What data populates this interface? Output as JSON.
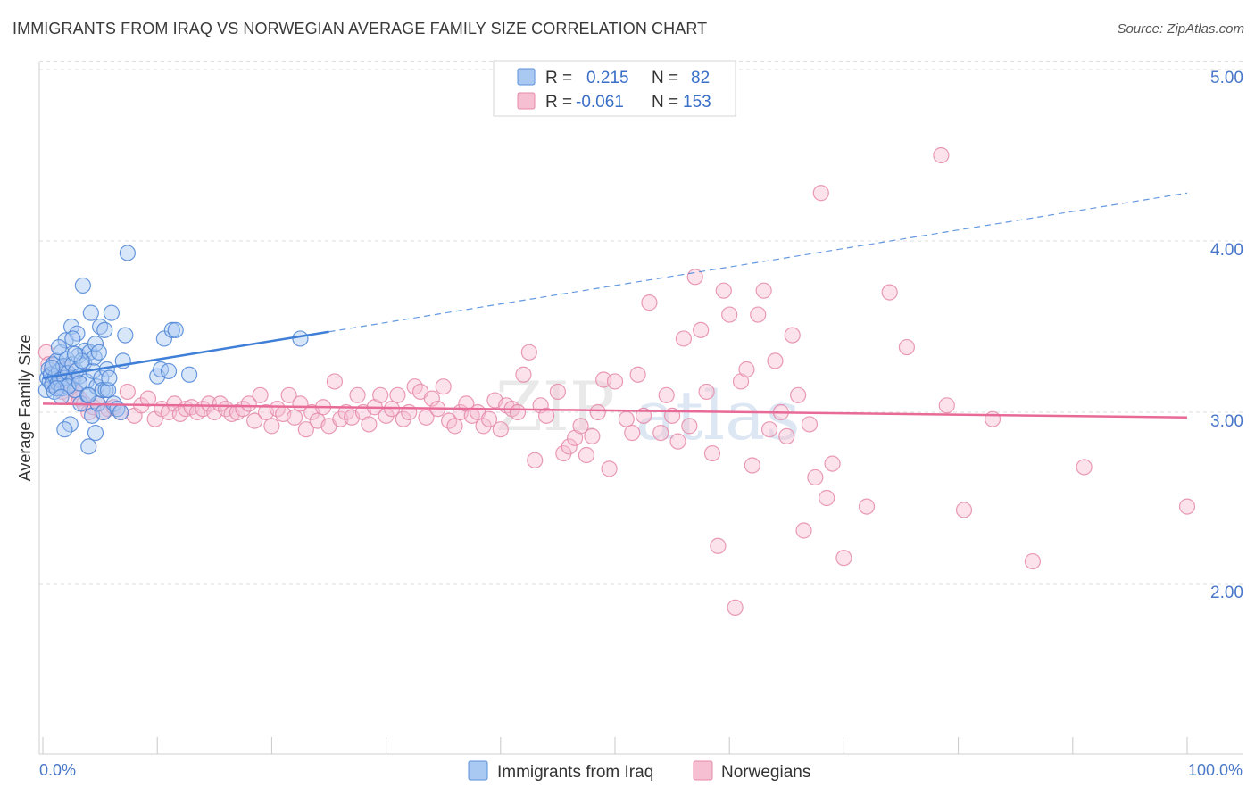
{
  "header": {
    "title": "IMMIGRANTS FROM IRAQ VS NORWEGIAN AVERAGE FAMILY SIZE CORRELATION CHART",
    "source": "Source: ZipAtlas.com"
  },
  "watermark": {
    "zip": "ZIP",
    "atlas": "atlas"
  },
  "colors": {
    "blue": "#3f7fd8",
    "blue_fill": "#a9c8f2",
    "pink": "#e86b97",
    "pink_fill": "#f6bfd2",
    "axis_text": "#4a78c8",
    "grid": "#d9d9d9"
  },
  "legend": {
    "iraq": {
      "r_label": "R =",
      "r_value": "0.215",
      "n_label": "N =",
      "n_value": "82"
    },
    "norway": {
      "r_label": "R =",
      "r_value": "-0.061",
      "n_label": "N =",
      "n_value": "153"
    }
  },
  "chart_data": {
    "type": "scatter",
    "title": "IMMIGRANTS FROM IRAQ VS NORWEGIAN AVERAGE FAMILY SIZE CORRELATION CHART",
    "xlabel": "",
    "ylabel": "Average Family Size",
    "xlim": [
      0,
      100
    ],
    "ylim": [
      1.0,
      5.2
    ],
    "x_tick_labels": [
      "0.0%",
      "100.0%"
    ],
    "y_ticks": [
      2.0,
      3.0,
      4.0,
      5.0
    ],
    "y_tick_labels": [
      "2.00",
      "3.00",
      "4.00",
      "5.00"
    ],
    "grid": true,
    "legend_position": "top-center",
    "series": [
      {
        "name": "Immigrants from Iraq",
        "color": "#3f7fd8",
        "r": 0.215,
        "n": 82,
        "trendline": {
          "x": [
            0,
            25
          ],
          "y": [
            3.2,
            3.47
          ],
          "dashed_extension": {
            "x": [
              25,
              100
            ],
            "y": [
              3.47,
              4.28
            ]
          }
        },
        "points": [
          [
            0.3,
            3.13
          ],
          [
            0.4,
            3.2
          ],
          [
            0.5,
            3.25
          ],
          [
            0.6,
            3.18
          ],
          [
            0.7,
            3.22
          ],
          [
            0.8,
            3.16
          ],
          [
            0.9,
            3.28
          ],
          [
            1.0,
            3.12
          ],
          [
            1.1,
            3.21
          ],
          [
            1.2,
            3.3
          ],
          [
            1.3,
            3.17
          ],
          [
            1.4,
            3.24
          ],
          [
            1.5,
            3.19
          ],
          [
            1.6,
            3.35
          ],
          [
            1.7,
            3.14
          ],
          [
            1.8,
            3.27
          ],
          [
            1.9,
            3.2
          ],
          [
            2.0,
            3.42
          ],
          [
            2.1,
            3.31
          ],
          [
            2.2,
            3.23
          ],
          [
            2.3,
            3.16
          ],
          [
            2.4,
            2.93
          ],
          [
            2.5,
            3.5
          ],
          [
            2.6,
            3.28
          ],
          [
            2.7,
            3.2
          ],
          [
            2.8,
            3.13
          ],
          [
            2.9,
            3.24
          ],
          [
            3.0,
            3.46
          ],
          [
            3.1,
            3.33
          ],
          [
            3.2,
            3.21
          ],
          [
            3.3,
            3.05
          ],
          [
            3.5,
            3.74
          ],
          [
            3.6,
            3.29
          ],
          [
            3.7,
            3.36
          ],
          [
            3.8,
            3.18
          ],
          [
            3.9,
            3.1
          ],
          [
            4.0,
            2.8
          ],
          [
            4.1,
            3.35
          ],
          [
            4.2,
            3.58
          ],
          [
            4.3,
            2.98
          ],
          [
            4.4,
            3.24
          ],
          [
            4.5,
            3.32
          ],
          [
            4.6,
            3.4
          ],
          [
            4.7,
            3.15
          ],
          [
            4.8,
            3.05
          ],
          [
            4.9,
            3.35
          ],
          [
            5.0,
            3.5
          ],
          [
            5.1,
            3.2
          ],
          [
            5.2,
            3.13
          ],
          [
            5.3,
            3.0
          ],
          [
            5.4,
            3.48
          ],
          [
            5.5,
            3.13
          ],
          [
            5.6,
            3.25
          ],
          [
            5.7,
            3.13
          ],
          [
            5.8,
            3.2
          ],
          [
            6.0,
            3.58
          ],
          [
            6.2,
            3.05
          ],
          [
            6.5,
            3.02
          ],
          [
            6.8,
            3.0
          ],
          [
            7.0,
            3.3
          ],
          [
            7.2,
            3.45
          ],
          [
            7.4,
            3.93
          ],
          [
            10.0,
            3.21
          ],
          [
            10.3,
            3.25
          ],
          [
            10.6,
            3.43
          ],
          [
            11.0,
            3.24
          ],
          [
            11.3,
            3.48
          ],
          [
            11.6,
            3.48
          ],
          [
            12.8,
            3.22
          ],
          [
            22.5,
            3.43
          ],
          [
            1.4,
            3.38
          ],
          [
            1.9,
            2.9
          ],
          [
            2.6,
            3.43
          ],
          [
            3.4,
            3.3
          ],
          [
            4.6,
            2.88
          ],
          [
            2.2,
            3.15
          ],
          [
            1.2,
            3.14
          ],
          [
            0.8,
            3.26
          ],
          [
            2.8,
            3.34
          ],
          [
            3.2,
            3.17
          ],
          [
            1.6,
            3.09
          ],
          [
            4.0,
            3.1
          ]
        ]
      },
      {
        "name": "Norwegians",
        "color": "#e86b97",
        "r": -0.061,
        "n": 153,
        "trendline": {
          "x": [
            0,
            100
          ],
          "y": [
            3.05,
            2.97
          ]
        },
        "points": [
          [
            0.3,
            3.35
          ],
          [
            0.5,
            3.28
          ],
          [
            0.7,
            3.22
          ],
          [
            0.9,
            3.18
          ],
          [
            1.1,
            3.15
          ],
          [
            1.4,
            3.2
          ],
          [
            1.7,
            3.12
          ],
          [
            2.0,
            3.25
          ],
          [
            2.3,
            3.1
          ],
          [
            2.6,
            3.17
          ],
          [
            2.9,
            3.12
          ],
          [
            3.2,
            3.08
          ],
          [
            3.6,
            3.05
          ],
          [
            4.0,
            3.0
          ],
          [
            4.4,
            3.03
          ],
          [
            4.8,
            3.05
          ],
          [
            5.2,
            3.0
          ],
          [
            5.7,
            3.02
          ],
          [
            6.2,
            3.03
          ],
          [
            6.8,
            3.0
          ],
          [
            7.4,
            3.12
          ],
          [
            8.0,
            2.98
          ],
          [
            8.6,
            3.04
          ],
          [
            9.2,
            3.08
          ],
          [
            9.8,
            2.96
          ],
          [
            10.4,
            3.02
          ],
          [
            11.0,
            3.0
          ],
          [
            11.5,
            3.05
          ],
          [
            12.0,
            2.99
          ],
          [
            12.5,
            3.02
          ],
          [
            13.0,
            3.03
          ],
          [
            13.5,
            3.0
          ],
          [
            14.0,
            3.02
          ],
          [
            14.5,
            3.05
          ],
          [
            15.0,
            3.0
          ],
          [
            15.5,
            3.05
          ],
          [
            16.0,
            3.02
          ],
          [
            16.5,
            2.99
          ],
          [
            17.0,
            3.0
          ],
          [
            17.5,
            3.02
          ],
          [
            18.0,
            3.05
          ],
          [
            18.5,
            2.95
          ],
          [
            19.0,
            3.1
          ],
          [
            19.5,
            3.0
          ],
          [
            20.0,
            2.92
          ],
          [
            20.5,
            3.02
          ],
          [
            21.0,
            2.99
          ],
          [
            21.5,
            3.1
          ],
          [
            22.0,
            2.97
          ],
          [
            22.5,
            3.05
          ],
          [
            23.0,
            2.9
          ],
          [
            23.5,
            3.0
          ],
          [
            24.0,
            2.95
          ],
          [
            24.5,
            3.03
          ],
          [
            25.0,
            2.92
          ],
          [
            25.5,
            3.18
          ],
          [
            26.0,
            2.96
          ],
          [
            26.5,
            3.0
          ],
          [
            27.0,
            2.97
          ],
          [
            27.5,
            3.1
          ],
          [
            28.0,
            3.0
          ],
          [
            28.5,
            2.93
          ],
          [
            29.0,
            3.03
          ],
          [
            29.5,
            3.1
          ],
          [
            30.0,
            2.98
          ],
          [
            30.5,
            3.02
          ],
          [
            31.0,
            3.1
          ],
          [
            31.5,
            2.96
          ],
          [
            32.0,
            3.0
          ],
          [
            32.5,
            3.15
          ],
          [
            33.0,
            3.12
          ],
          [
            33.5,
            2.97
          ],
          [
            34.0,
            3.08
          ],
          [
            34.5,
            3.02
          ],
          [
            35.0,
            3.15
          ],
          [
            35.5,
            2.95
          ],
          [
            36.0,
            2.92
          ],
          [
            36.5,
            3.0
          ],
          [
            37.0,
            3.05
          ],
          [
            37.5,
            2.98
          ],
          [
            38.0,
            3.0
          ],
          [
            38.5,
            2.92
          ],
          [
            39.0,
            2.96
          ],
          [
            39.5,
            3.07
          ],
          [
            40.0,
            2.9
          ],
          [
            40.5,
            3.04
          ],
          [
            41.0,
            3.02
          ],
          [
            41.5,
            3.0
          ],
          [
            42.0,
            3.22
          ],
          [
            42.5,
            3.35
          ],
          [
            43.0,
            2.72
          ],
          [
            43.5,
            3.04
          ],
          [
            44.0,
            2.98
          ],
          [
            45.0,
            3.12
          ],
          [
            45.5,
            2.76
          ],
          [
            46.0,
            2.8
          ],
          [
            46.5,
            2.85
          ],
          [
            47.0,
            2.92
          ],
          [
            47.5,
            2.75
          ],
          [
            48.0,
            2.86
          ],
          [
            48.5,
            3.0
          ],
          [
            49.0,
            3.19
          ],
          [
            49.5,
            2.67
          ],
          [
            50.0,
            3.18
          ],
          [
            51.0,
            2.96
          ],
          [
            51.5,
            2.88
          ],
          [
            52.0,
            3.22
          ],
          [
            52.5,
            2.98
          ],
          [
            53.0,
            3.64
          ],
          [
            54.0,
            2.88
          ],
          [
            54.5,
            3.1
          ],
          [
            55.0,
            2.98
          ],
          [
            55.5,
            2.83
          ],
          [
            56.0,
            3.43
          ],
          [
            56.5,
            2.92
          ],
          [
            57.0,
            3.79
          ],
          [
            57.5,
            3.48
          ],
          [
            58.0,
            3.12
          ],
          [
            58.5,
            2.76
          ],
          [
            59.0,
            2.22
          ],
          [
            59.5,
            3.71
          ],
          [
            60.0,
            3.57
          ],
          [
            60.5,
            1.86
          ],
          [
            61.0,
            3.18
          ],
          [
            61.5,
            3.25
          ],
          [
            62.0,
            2.69
          ],
          [
            62.5,
            3.57
          ],
          [
            63.0,
            3.71
          ],
          [
            63.5,
            2.9
          ],
          [
            64.0,
            3.3
          ],
          [
            64.5,
            3.0
          ],
          [
            65.0,
            2.86
          ],
          [
            65.5,
            3.45
          ],
          [
            66.0,
            3.1
          ],
          [
            66.5,
            2.31
          ],
          [
            67.0,
            2.93
          ],
          [
            67.5,
            2.62
          ],
          [
            68.0,
            4.28
          ],
          [
            68.5,
            2.5
          ],
          [
            69.0,
            2.7
          ],
          [
            70.0,
            2.15
          ],
          [
            72.0,
            2.45
          ],
          [
            74.0,
            3.7
          ],
          [
            75.5,
            3.38
          ],
          [
            78.5,
            4.5
          ],
          [
            79.0,
            3.04
          ],
          [
            80.5,
            2.43
          ],
          [
            83.0,
            2.96
          ],
          [
            86.5,
            2.13
          ],
          [
            91.0,
            2.68
          ],
          [
            100.0,
            2.45
          ]
        ]
      }
    ]
  },
  "bottom_legend": {
    "iraq_label": "Immigrants from Iraq",
    "norway_label": "Norwegians"
  }
}
